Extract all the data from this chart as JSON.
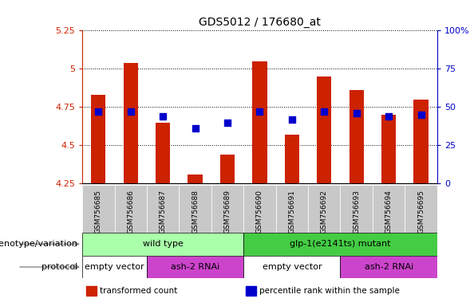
{
  "title": "GDS5012 / 176680_at",
  "samples": [
    "GSM756685",
    "GSM756686",
    "GSM756687",
    "GSM756688",
    "GSM756689",
    "GSM756690",
    "GSM756691",
    "GSM756692",
    "GSM756693",
    "GSM756694",
    "GSM756695"
  ],
  "red_values": [
    4.83,
    5.04,
    4.65,
    4.31,
    4.44,
    5.05,
    4.57,
    4.95,
    4.86,
    4.7,
    4.8
  ],
  "blue_percentile": [
    47,
    47,
    44,
    36,
    40,
    47,
    42,
    47,
    46,
    44,
    45
  ],
  "ylim_left": [
    4.25,
    5.25
  ],
  "ylim_right": [
    0,
    100
  ],
  "yticks_left": [
    4.25,
    4.5,
    4.75,
    5.0,
    5.25
  ],
  "yticks_right": [
    0,
    25,
    50,
    75,
    100
  ],
  "ytick_labels_left": [
    "4.25",
    "4.5",
    "4.75",
    "5",
    "5.25"
  ],
  "ytick_labels_right": [
    "0",
    "25",
    "50",
    "75",
    "100%"
  ],
  "bar_color": "#cc2200",
  "dot_color": "#0000cc",
  "genotype_groups": [
    {
      "label": "wild type",
      "start": 0,
      "end": 5,
      "color": "#aaffaa"
    },
    {
      "label": "glp-1(e2141ts) mutant",
      "start": 5,
      "end": 11,
      "color": "#44cc44"
    }
  ],
  "protocol_groups": [
    {
      "label": "empty vector",
      "start": 0,
      "end": 2,
      "color": "#ffffff"
    },
    {
      "label": "ash-2 RNAi",
      "start": 2,
      "end": 5,
      "color": "#cc44cc"
    },
    {
      "label": "empty vector",
      "start": 5,
      "end": 8,
      "color": "#ffffff"
    },
    {
      "label": "ash-2 RNAi",
      "start": 8,
      "end": 11,
      "color": "#cc44cc"
    }
  ],
  "legend_items": [
    {
      "label": "transformed count",
      "color": "#cc2200"
    },
    {
      "label": "percentile rank within the sample",
      "color": "#0000cc"
    }
  ],
  "genotype_label": "genotype/variation",
  "protocol_label": "protocol",
  "bar_width": 0.45
}
